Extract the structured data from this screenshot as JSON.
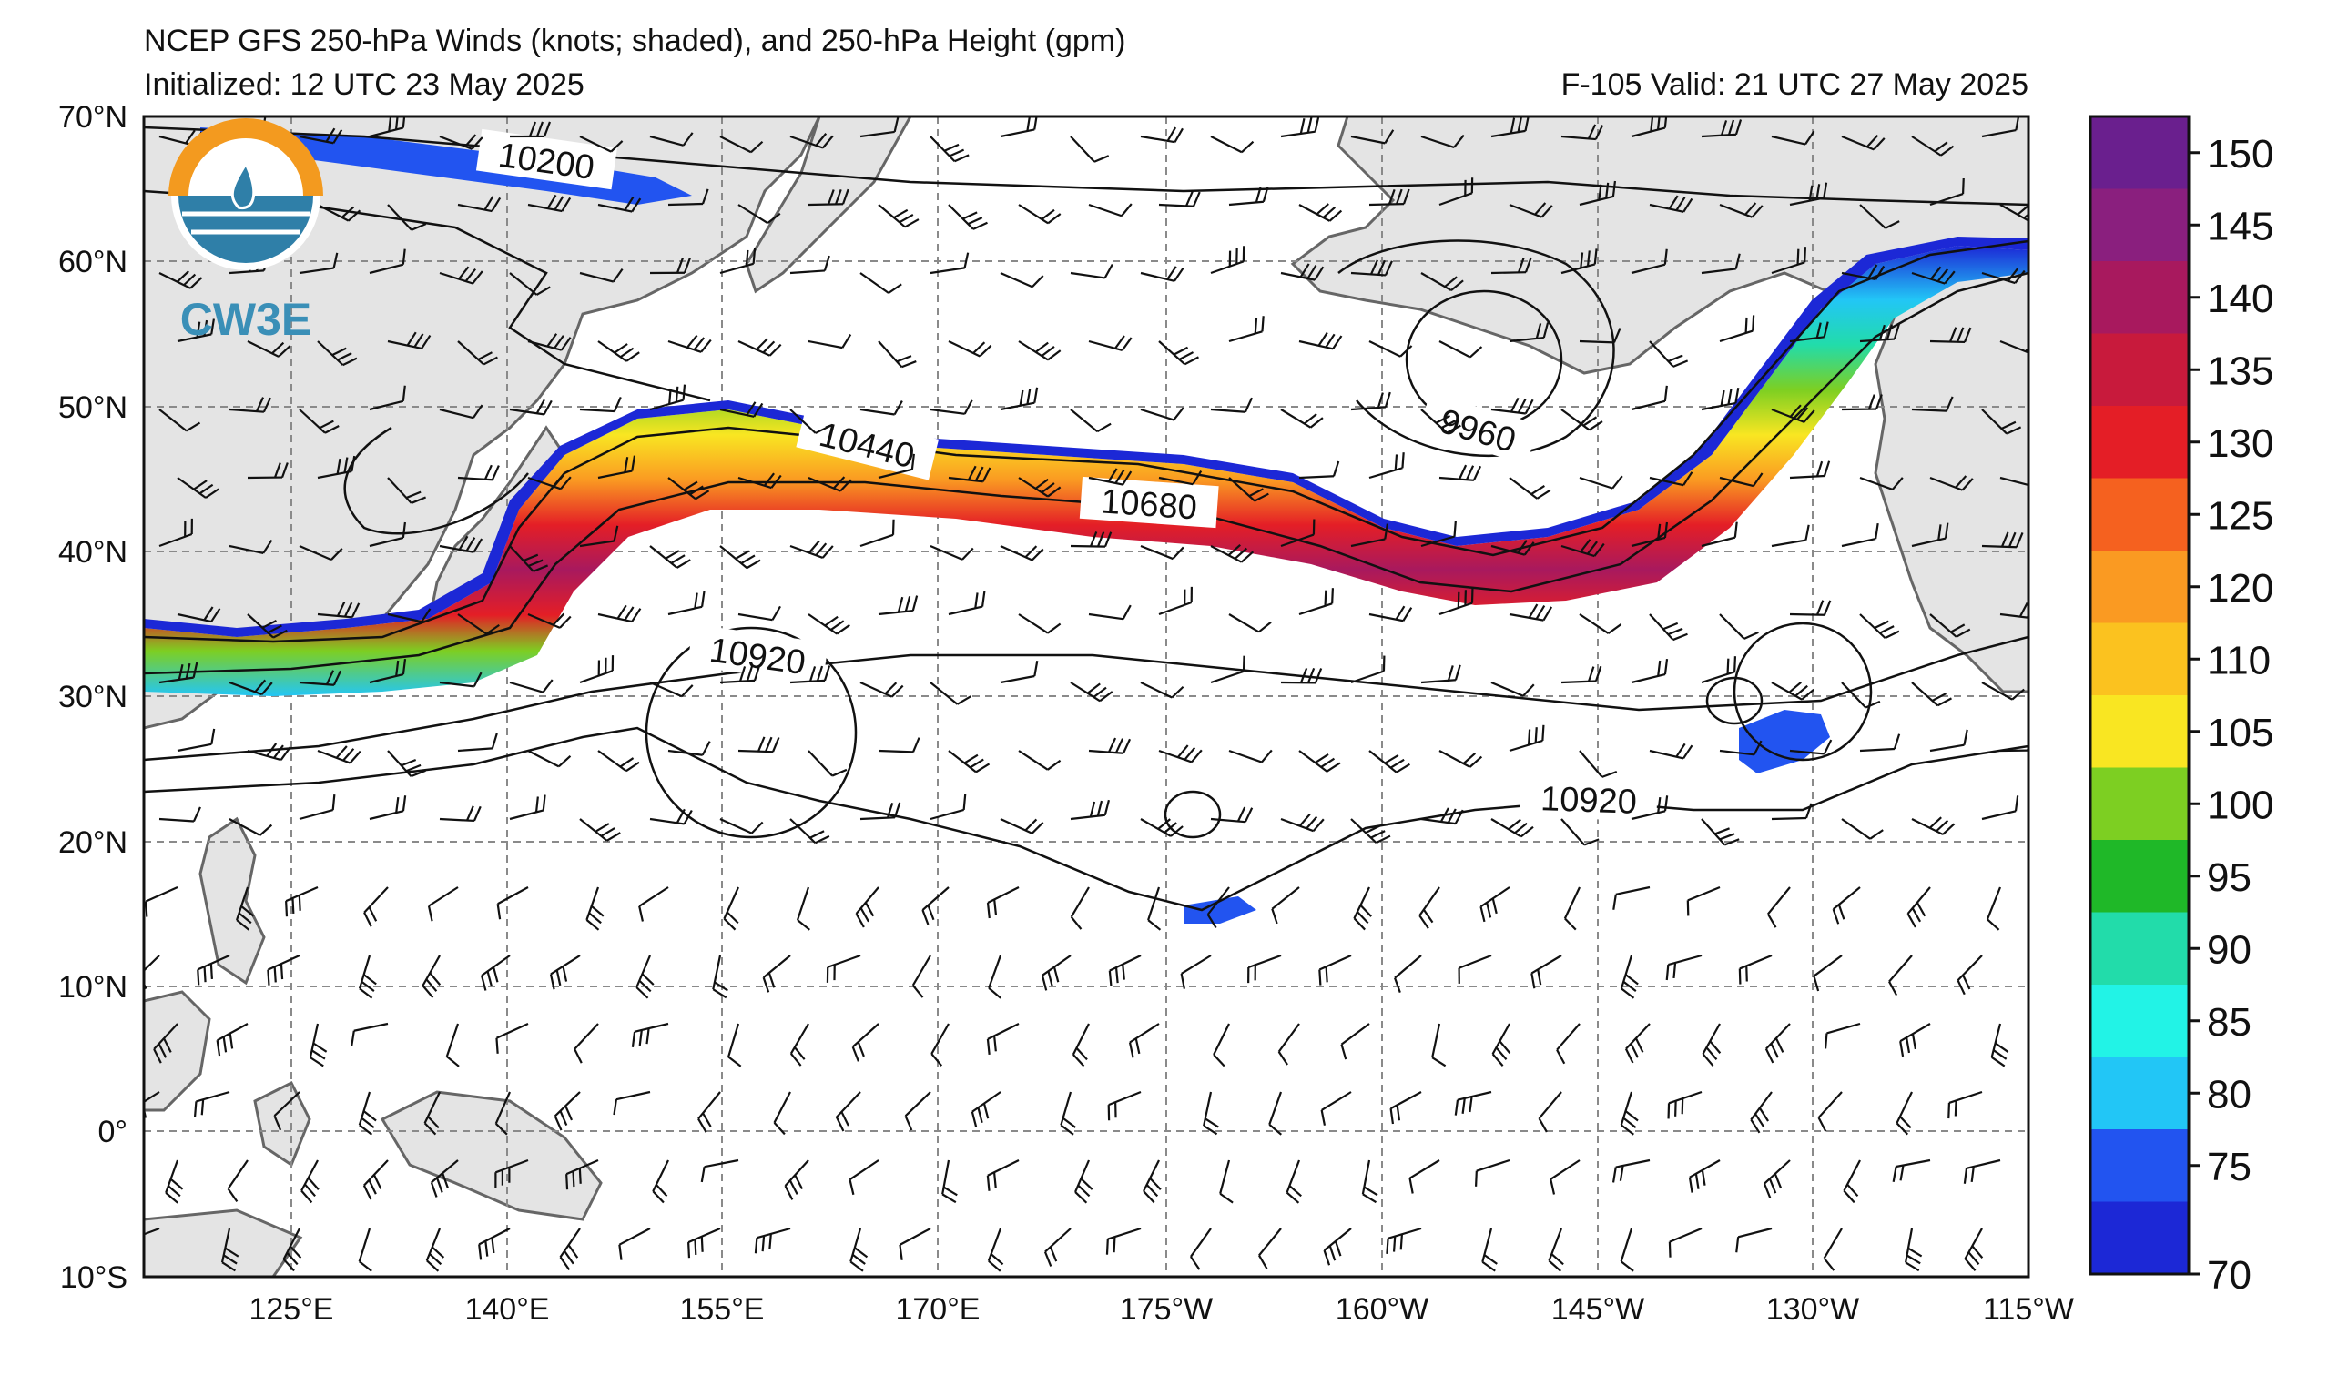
{
  "header": {
    "title": "NCEP GFS 250-hPa Winds (knots; shaded), and 250-hPa Height (gpm)",
    "initialized": "Initialized: 12 UTC 23 May 2025",
    "valid": "F-105  Valid: 21 UTC 27 May 2025"
  },
  "logo": {
    "text": "CW3E"
  },
  "axes": {
    "lat_ticks": [
      "70°N",
      "60°N",
      "50°N",
      "40°N",
      "30°N",
      "20°N",
      "10°N",
      "0°",
      "10°S"
    ],
    "lon_ticks": [
      "125°E",
      "140°E",
      "155°E",
      "170°E",
      "175°W",
      "160°W",
      "145°W",
      "130°W",
      "115°W"
    ]
  },
  "contour_labels": [
    "10200",
    "10440",
    "10680",
    "10920",
    "10920",
    "9960"
  ],
  "colorbar": {
    "labels": [
      "150",
      "145",
      "140",
      "135",
      "130",
      "125",
      "120",
      "110",
      "105",
      "100",
      "95",
      "90",
      "85",
      "80",
      "75",
      "70"
    ],
    "colors": [
      "#6a1f8e",
      "#8a1f7e",
      "#a8195e",
      "#c81a3c",
      "#e41e26",
      "#f5611f",
      "#fa9a22",
      "#fbc21f",
      "#f9e622",
      "#7dcf22",
      "#1fb828",
      "#22dcaa",
      "#22f3e6",
      "#22c6f6",
      "#2254f0",
      "#1c28d6"
    ]
  }
}
